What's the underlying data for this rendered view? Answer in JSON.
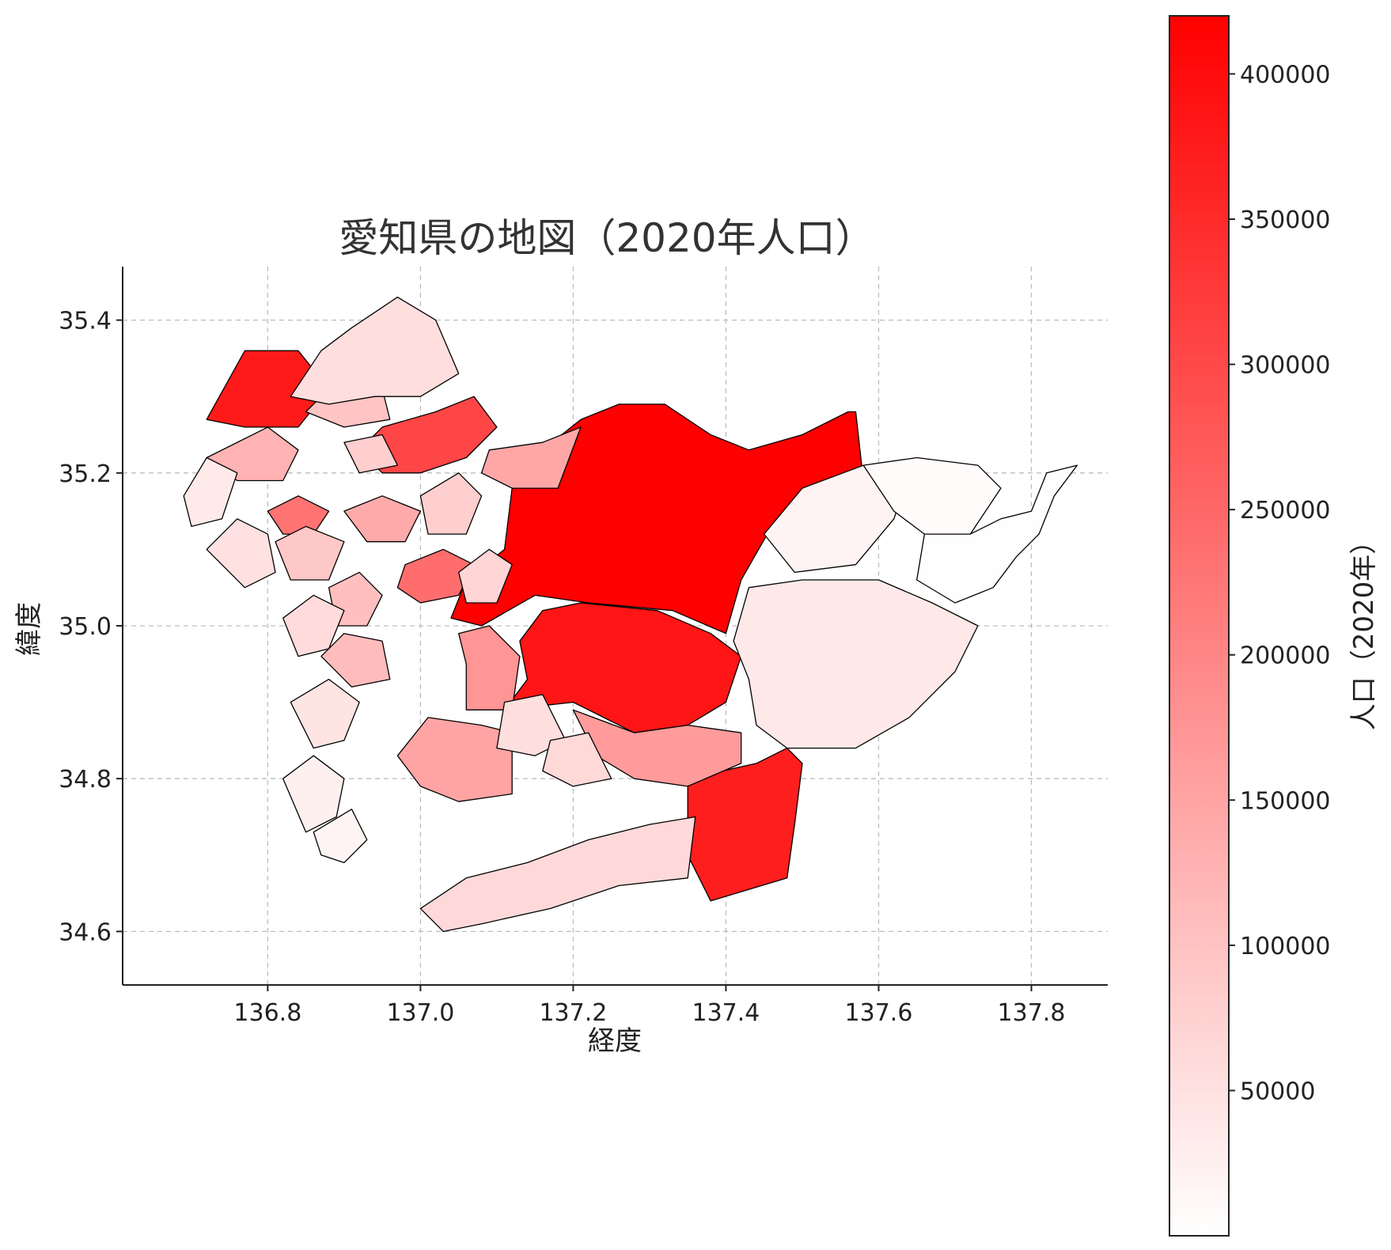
{
  "title": "愛知県の地図（2020年人口）",
  "xlabel": "経度",
  "ylabel": "緯度",
  "colorbar": {
    "label": "人口（2020年）",
    "min": 0,
    "max": 420000,
    "ticks": [
      50000,
      100000,
      150000,
      200000,
      250000,
      300000,
      350000,
      400000
    ],
    "tick_labels": [
      "50000",
      "100000",
      "150000",
      "200000",
      "250000",
      "300000",
      "350000",
      "400000"
    ],
    "color_low": "#ffffff",
    "color_high": "#ff0000"
  },
  "chart_data": {
    "type": "choropleth",
    "title": "愛知県の地図（2020年人口）",
    "xlabel": "経度",
    "ylabel": "緯度",
    "xlim": [
      136.61,
      137.9
    ],
    "ylim": [
      34.53,
      35.47
    ],
    "xticks": [
      136.8,
      137.0,
      137.2,
      137.4,
      137.6,
      137.8
    ],
    "xtick_labels": [
      "136.8",
      "137.0",
      "137.2",
      "137.4",
      "137.6",
      "137.8"
    ],
    "yticks": [
      34.6,
      34.8,
      35.0,
      35.2,
      35.4
    ],
    "ytick_labels": [
      "34.6",
      "34.8",
      "35.0",
      "35.2",
      "35.4"
    ],
    "grid": true,
    "color_scale": "white-to-red",
    "regions": [
      {
        "poly": [
          [
            137.12,
            35.18
          ],
          [
            137.16,
            35.23
          ],
          [
            137.21,
            35.27
          ],
          [
            137.26,
            35.29
          ],
          [
            137.32,
            35.29
          ],
          [
            137.38,
            35.25
          ],
          [
            137.43,
            35.23
          ],
          [
            137.5,
            35.25
          ],
          [
            137.56,
            35.28
          ],
          [
            137.57,
            35.28
          ],
          [
            137.58,
            35.19
          ],
          [
            137.5,
            35.18
          ],
          [
            137.46,
            35.13
          ],
          [
            137.42,
            35.06
          ],
          [
            137.4,
            34.99
          ],
          [
            137.33,
            35.02
          ],
          [
            137.22,
            35.03
          ],
          [
            137.15,
            35.04
          ],
          [
            137.08,
            35.0
          ],
          [
            137.04,
            35.01
          ],
          [
            137.06,
            35.06
          ],
          [
            137.11,
            35.1
          ]
        ],
        "population": 422000
      },
      {
        "poly": [
          [
            137.16,
            35.02
          ],
          [
            137.21,
            35.03
          ],
          [
            137.31,
            35.02
          ],
          [
            137.38,
            34.99
          ],
          [
            137.42,
            34.96
          ],
          [
            137.4,
            34.9
          ],
          [
            137.35,
            34.87
          ],
          [
            137.28,
            34.86
          ],
          [
            137.2,
            34.9
          ],
          [
            137.11,
            34.89
          ],
          [
            137.14,
            34.93
          ],
          [
            137.13,
            34.98
          ]
        ],
        "population": 385000
      },
      {
        "poly": [
          [
            137.35,
            34.8
          ],
          [
            137.44,
            34.82
          ],
          [
            137.48,
            34.84
          ],
          [
            137.5,
            34.82
          ],
          [
            137.49,
            34.74
          ],
          [
            137.48,
            34.67
          ],
          [
            137.38,
            34.64
          ],
          [
            137.35,
            34.7
          ],
          [
            137.35,
            34.75
          ]
        ],
        "population": 370000
      },
      {
        "poly": [
          [
            136.72,
            35.27
          ],
          [
            136.77,
            35.36
          ],
          [
            136.84,
            35.36
          ],
          [
            136.88,
            35.31
          ],
          [
            136.84,
            35.26
          ],
          [
            136.77,
            35.26
          ]
        ],
        "population": 378000
      },
      {
        "poly": [
          [
            136.92,
            35.23
          ],
          [
            136.95,
            35.26
          ],
          [
            137.02,
            35.28
          ],
          [
            137.07,
            35.3
          ],
          [
            137.1,
            35.26
          ],
          [
            137.06,
            35.22
          ],
          [
            137.0,
            35.2
          ],
          [
            136.95,
            35.2
          ]
        ],
        "population": 305000
      },
      {
        "poly": [
          [
            136.98,
            35.08
          ],
          [
            137.03,
            35.1
          ],
          [
            137.07,
            35.08
          ],
          [
            137.05,
            35.04
          ],
          [
            137.0,
            35.03
          ],
          [
            136.97,
            35.05
          ]
        ],
        "population": 240000
      },
      {
        "poly": [
          [
            136.8,
            35.15
          ],
          [
            136.84,
            35.17
          ],
          [
            136.88,
            35.15
          ],
          [
            136.86,
            35.12
          ],
          [
            136.82,
            35.12
          ]
        ],
        "population": 230000
      },
      {
        "poly": [
          [
            137.05,
            34.99
          ],
          [
            137.09,
            35.0
          ],
          [
            137.13,
            34.96
          ],
          [
            137.12,
            34.89
          ],
          [
            137.06,
            34.89
          ],
          [
            137.06,
            34.95
          ]
        ],
        "population": 175000
      },
      {
        "poly": [
          [
            137.2,
            34.89
          ],
          [
            137.28,
            34.86
          ],
          [
            137.35,
            34.87
          ],
          [
            137.42,
            34.86
          ],
          [
            137.42,
            34.82
          ],
          [
            137.35,
            34.79
          ],
          [
            137.28,
            34.8
          ],
          [
            137.23,
            34.83
          ]
        ],
        "population": 165000
      },
      {
        "poly": [
          [
            136.97,
            34.83
          ],
          [
            137.01,
            34.88
          ],
          [
            137.08,
            34.87
          ],
          [
            137.12,
            34.86
          ],
          [
            137.12,
            34.78
          ],
          [
            137.05,
            34.77
          ],
          [
            137.0,
            34.79
          ]
        ],
        "population": 150000
      },
      {
        "poly": [
          [
            137.09,
            35.23
          ],
          [
            137.16,
            35.24
          ],
          [
            137.21,
            35.26
          ],
          [
            137.18,
            35.18
          ],
          [
            137.12,
            35.18
          ],
          [
            137.08,
            35.2
          ]
        ],
        "population": 145000
      },
      {
        "poly": [
          [
            136.72,
            35.22
          ],
          [
            136.8,
            35.26
          ],
          [
            136.84,
            35.23
          ],
          [
            136.82,
            35.19
          ],
          [
            136.76,
            35.19
          ]
        ],
        "population": 125000
      },
      {
        "poly": [
          [
            136.9,
            35.15
          ],
          [
            136.95,
            35.17
          ],
          [
            137.0,
            35.15
          ],
          [
            136.98,
            35.11
          ],
          [
            136.93,
            35.11
          ]
        ],
        "population": 140000
      },
      {
        "poly": [
          [
            136.85,
            35.28
          ],
          [
            136.9,
            35.33
          ],
          [
            136.95,
            35.31
          ],
          [
            136.96,
            35.27
          ],
          [
            136.9,
            35.26
          ]
        ],
        "population": 95000
      },
      {
        "poly": [
          [
            136.88,
            35.05
          ],
          [
            136.92,
            35.07
          ],
          [
            136.95,
            35.04
          ],
          [
            136.93,
            35.0
          ],
          [
            136.89,
            35.0
          ]
        ],
        "population": 105000
      },
      {
        "poly": [
          [
            136.87,
            34.96
          ],
          [
            136.9,
            34.99
          ],
          [
            136.95,
            34.98
          ],
          [
            136.96,
            34.93
          ],
          [
            136.91,
            34.92
          ]
        ],
        "population": 110000
      },
      {
        "poly": [
          [
            136.81,
            35.11
          ],
          [
            136.85,
            35.13
          ],
          [
            136.9,
            35.11
          ],
          [
            136.88,
            35.06
          ],
          [
            136.83,
            35.06
          ]
        ],
        "population": 90000
      },
      {
        "poly": [
          [
            136.9,
            35.24
          ],
          [
            136.95,
            35.25
          ],
          [
            136.97,
            35.21
          ],
          [
            136.92,
            35.2
          ]
        ],
        "population": 80000
      },
      {
        "poly": [
          [
            137.0,
            35.17
          ],
          [
            137.05,
            35.2
          ],
          [
            137.08,
            35.17
          ],
          [
            137.06,
            35.12
          ],
          [
            137.01,
            35.12
          ]
        ],
        "population": 80000
      },
      {
        "poly": [
          [
            137.05,
            35.07
          ],
          [
            137.09,
            35.1
          ],
          [
            137.12,
            35.08
          ],
          [
            137.1,
            35.03
          ],
          [
            137.06,
            35.03
          ]
        ],
        "population": 70000
      },
      {
        "poly": [
          [
            137.11,
            34.9
          ],
          [
            137.16,
            34.91
          ],
          [
            137.19,
            34.85
          ],
          [
            137.15,
            34.83
          ],
          [
            137.1,
            34.84
          ]
        ],
        "population": 55000
      },
      {
        "poly": [
          [
            137.17,
            34.85
          ],
          [
            137.22,
            34.86
          ],
          [
            137.25,
            34.8
          ],
          [
            137.2,
            34.79
          ],
          [
            137.16,
            34.81
          ]
        ],
        "population": 65000
      },
      {
        "poly": [
          [
            136.83,
            35.3
          ],
          [
            136.87,
            35.36
          ],
          [
            136.91,
            35.39
          ],
          [
            136.97,
            35.43
          ],
          [
            137.02,
            35.4
          ],
          [
            137.05,
            35.33
          ],
          [
            137.0,
            35.3
          ],
          [
            136.94,
            35.3
          ],
          [
            136.88,
            35.29
          ]
        ],
        "population": 55000
      },
      {
        "poly": [
          [
            136.69,
            35.17
          ],
          [
            136.72,
            35.22
          ],
          [
            136.76,
            35.2
          ],
          [
            136.74,
            35.14
          ],
          [
            136.7,
            35.13
          ]
        ],
        "population": 35000
      },
      {
        "poly": [
          [
            136.72,
            35.1
          ],
          [
            136.76,
            35.14
          ],
          [
            136.8,
            35.12
          ],
          [
            136.81,
            35.07
          ],
          [
            136.77,
            35.05
          ]
        ],
        "population": 50000
      },
      {
        "poly": [
          [
            136.82,
            35.01
          ],
          [
            136.86,
            35.04
          ],
          [
            136.9,
            35.02
          ],
          [
            136.88,
            34.97
          ],
          [
            136.84,
            34.96
          ]
        ],
        "population": 60000
      },
      {
        "poly": [
          [
            136.83,
            34.9
          ],
          [
            136.88,
            34.93
          ],
          [
            136.92,
            34.9
          ],
          [
            136.9,
            34.85
          ],
          [
            136.86,
            34.84
          ]
        ],
        "population": 45000
      },
      {
        "poly": [
          [
            136.82,
            34.8
          ],
          [
            136.86,
            34.83
          ],
          [
            136.9,
            34.8
          ],
          [
            136.89,
            34.75
          ],
          [
            136.85,
            34.73
          ]
        ],
        "population": 25000
      },
      {
        "poly": [
          [
            136.86,
            34.73
          ],
          [
            136.91,
            34.76
          ],
          [
            136.93,
            34.72
          ],
          [
            136.9,
            34.69
          ],
          [
            136.87,
            34.7
          ]
        ],
        "population": 18000
      },
      {
        "poly": [
          [
            137.0,
            34.63
          ],
          [
            137.06,
            34.67
          ],
          [
            137.14,
            34.69
          ],
          [
            137.22,
            34.72
          ],
          [
            137.3,
            34.74
          ],
          [
            137.36,
            34.75
          ],
          [
            137.35,
            34.67
          ],
          [
            137.26,
            34.66
          ],
          [
            137.17,
            34.63
          ],
          [
            137.08,
            34.61
          ],
          [
            137.03,
            34.6
          ]
        ],
        "population": 62000
      },
      {
        "poly": [
          [
            137.43,
            35.05
          ],
          [
            137.5,
            35.06
          ],
          [
            137.6,
            35.06
          ],
          [
            137.67,
            35.03
          ],
          [
            137.73,
            35.0
          ],
          [
            137.7,
            34.94
          ],
          [
            137.64,
            34.88
          ],
          [
            137.57,
            34.84
          ],
          [
            137.48,
            34.84
          ],
          [
            137.44,
            34.87
          ],
          [
            137.43,
            34.93
          ],
          [
            137.41,
            34.98
          ]
        ],
        "population": 38000
      },
      {
        "poly": [
          [
            137.5,
            35.18
          ],
          [
            137.58,
            35.21
          ],
          [
            137.64,
            35.2
          ],
          [
            137.62,
            35.14
          ],
          [
            137.57,
            35.08
          ],
          [
            137.49,
            35.07
          ],
          [
            137.45,
            35.12
          ]
        ],
        "population": 20000
      },
      {
        "poly": [
          [
            137.58,
            35.21
          ],
          [
            137.65,
            35.22
          ],
          [
            137.73,
            35.21
          ],
          [
            137.76,
            35.18
          ],
          [
            137.72,
            35.12
          ],
          [
            137.66,
            35.12
          ],
          [
            137.62,
            35.15
          ]
        ],
        "population": 6000
      },
      {
        "poly": [
          [
            137.66,
            35.12
          ],
          [
            137.72,
            35.12
          ],
          [
            137.76,
            35.14
          ],
          [
            137.8,
            35.15
          ],
          [
            137.82,
            35.2
          ],
          [
            137.86,
            35.21
          ],
          [
            137.83,
            35.17
          ],
          [
            137.81,
            35.12
          ],
          [
            137.78,
            35.09
          ],
          [
            137.75,
            35.05
          ],
          [
            137.7,
            35.03
          ],
          [
            137.65,
            35.06
          ]
        ],
        "population": 2000
      }
    ]
  }
}
